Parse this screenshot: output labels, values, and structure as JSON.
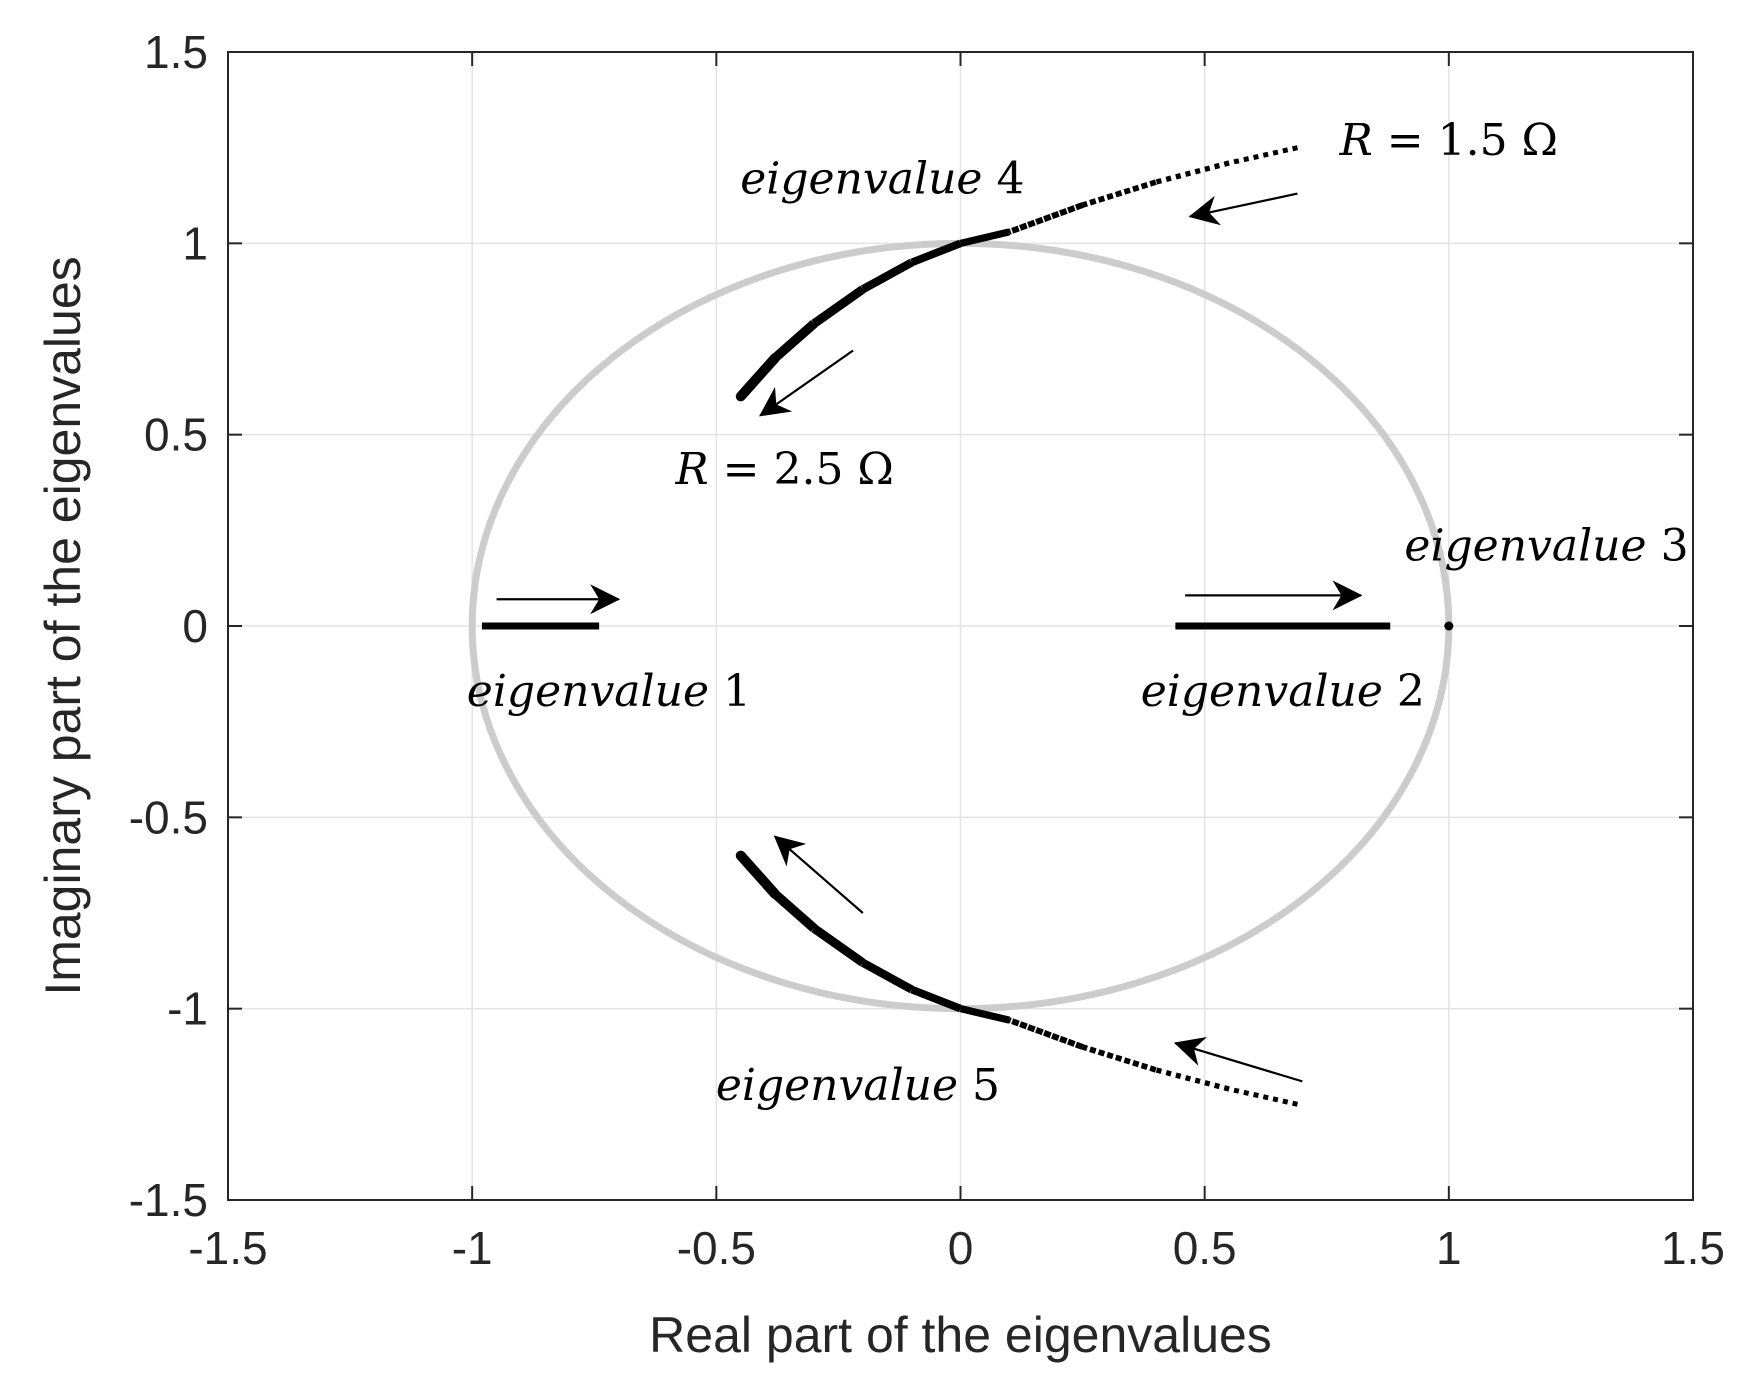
{
  "chart_data": {
    "type": "scatter",
    "xlabel": "Real part of the eigenvalues",
    "ylabel": "Imaginary part of the eigenvalues",
    "xlim": [
      -1.5,
      1.5
    ],
    "ylim": [
      -1.5,
      1.5
    ],
    "grid": true,
    "x_ticks": [
      "-1.5",
      "-1",
      "-0.5",
      "0",
      "0.5",
      "1",
      "1.5"
    ],
    "y_ticks": [
      "-1.5",
      "-1",
      "-0.5",
      "0",
      "0.5",
      "1",
      "1.5"
    ],
    "unit_circle": {
      "center": [
        0,
        0
      ],
      "radius": 1,
      "color": "#cccccc"
    },
    "series": [
      {
        "name": "eigenvalue 1",
        "color": "#000000",
        "points": [
          [
            -0.98,
            0
          ],
          [
            -0.74,
            0
          ]
        ]
      },
      {
        "name": "eigenvalue 2",
        "color": "#000000",
        "points": [
          [
            0.44,
            0
          ],
          [
            0.88,
            0
          ]
        ]
      },
      {
        "name": "eigenvalue 3",
        "color": "#000000",
        "points": [
          [
            1.0,
            0
          ]
        ]
      },
      {
        "name": "eigenvalue 4",
        "color": "#000000",
        "points": [
          [
            0.69,
            1.25
          ],
          [
            0.55,
            1.21
          ],
          [
            0.4,
            1.16
          ],
          [
            0.25,
            1.1
          ],
          [
            0.1,
            1.03
          ],
          [
            0.0,
            1.0
          ],
          [
            -0.1,
            0.95
          ],
          [
            -0.2,
            0.88
          ],
          [
            -0.3,
            0.79
          ],
          [
            -0.38,
            0.7
          ],
          [
            -0.45,
            0.6
          ]
        ]
      },
      {
        "name": "eigenvalue 5",
        "color": "#000000",
        "points": [
          [
            0.69,
            -1.25
          ],
          [
            0.55,
            -1.21
          ],
          [
            0.4,
            -1.16
          ],
          [
            0.25,
            -1.1
          ],
          [
            0.1,
            -1.03
          ],
          [
            0.0,
            -1.0
          ],
          [
            -0.1,
            -0.95
          ],
          [
            -0.2,
            -0.88
          ],
          [
            -0.3,
            -0.79
          ],
          [
            -0.38,
            -0.7
          ],
          [
            -0.45,
            -0.6
          ]
        ]
      }
    ],
    "annotations": [
      {
        "id": "label-ev1",
        "text": "eigenvalue 1",
        "x": -0.72,
        "y": -0.17
      },
      {
        "id": "label-ev2",
        "text": "eigenvalue 2",
        "x": 0.66,
        "y": -0.17
      },
      {
        "id": "label-ev3",
        "text": "eigenvalue 3",
        "x": 1.2,
        "y": 0.21
      },
      {
        "id": "label-ev4",
        "text": "eigenvalue 4",
        "x": -0.16,
        "y": 1.17
      },
      {
        "id": "label-ev5",
        "text": "eigenvalue 5",
        "x": -0.21,
        "y": -1.2
      },
      {
        "id": "label-r15",
        "text": "R = 1.5 Ω",
        "x": 1.0,
        "y": 1.27
      },
      {
        "id": "label-r25",
        "text": "R = 2.5 Ω",
        "x": -0.36,
        "y": 0.41
      }
    ],
    "arrows": [
      {
        "id": "arrow-ev1",
        "from": [
          -0.95,
          0.07
        ],
        "to": [
          -0.7,
          0.07
        ]
      },
      {
        "id": "arrow-ev2",
        "from": [
          0.46,
          0.08
        ],
        "to": [
          0.82,
          0.08
        ]
      },
      {
        "id": "arrow-ev4-upper",
        "from": [
          0.69,
          1.13
        ],
        "to": [
          0.47,
          1.07
        ]
      },
      {
        "id": "arrow-ev4-lower",
        "from": [
          -0.22,
          0.72
        ],
        "to": [
          -0.41,
          0.55
        ]
      },
      {
        "id": "arrow-ev5-upper",
        "from": [
          -0.2,
          -0.75
        ],
        "to": [
          -0.38,
          -0.55
        ]
      },
      {
        "id": "arrow-ev5-lower",
        "from": [
          0.7,
          -1.19
        ],
        "to": [
          0.44,
          -1.09
        ]
      }
    ]
  }
}
